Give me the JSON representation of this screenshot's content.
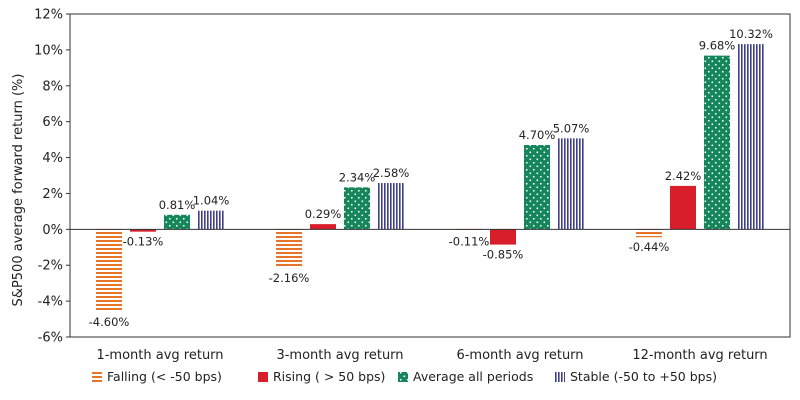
{
  "chart_data": {
    "type": "bar",
    "title": "",
    "xlabel": "",
    "ylabel": "S&P500 average forward return (%)",
    "ylim": [
      -6,
      12
    ],
    "yticks": [
      -6,
      -4,
      -2,
      0,
      2,
      4,
      6,
      8,
      10,
      12
    ],
    "ytick_labels": [
      "-6%",
      "-4%",
      "-2%",
      "0%",
      "2%",
      "4%",
      "6%",
      "8%",
      "10%",
      "12%"
    ],
    "grid": false,
    "legend_position": "bottom",
    "categories": [
      "1-month avg return",
      "3-month avg return",
      "6-month avg return",
      "12-month avg return"
    ],
    "series": [
      {
        "name": "Falling (< -50 bps)",
        "color": "#E8742A",
        "pattern": "horizontal-stripes",
        "values": [
          -4.6,
          -2.16,
          -0.11,
          -0.44
        ],
        "labels": [
          "-4.60%",
          "-2.16%",
          "-0.11%",
          "-0.44%"
        ]
      },
      {
        "name": "Rising ( > 50 bps)",
        "color": "#D81E2B",
        "pattern": "solid",
        "values": [
          -0.13,
          0.29,
          -0.85,
          2.42
        ],
        "labels": [
          "-0.13%",
          "0.29%",
          "-0.85%",
          "2.42%"
        ]
      },
      {
        "name": "Average all periods",
        "color": "#15865A",
        "pattern": "dots",
        "values": [
          0.81,
          2.34,
          4.7,
          9.68
        ],
        "labels": [
          "0.81%",
          "2.34%",
          "4.70%",
          "9.68%"
        ]
      },
      {
        "name": "Stable (-50 to +50 bps)",
        "color": "#3F3F8C",
        "pattern": "vertical-stripes",
        "values": [
          1.04,
          2.58,
          5.07,
          10.32
        ],
        "labels": [
          "1.04%",
          "2.58%",
          "5.07%",
          "10.32%"
        ]
      }
    ]
  }
}
